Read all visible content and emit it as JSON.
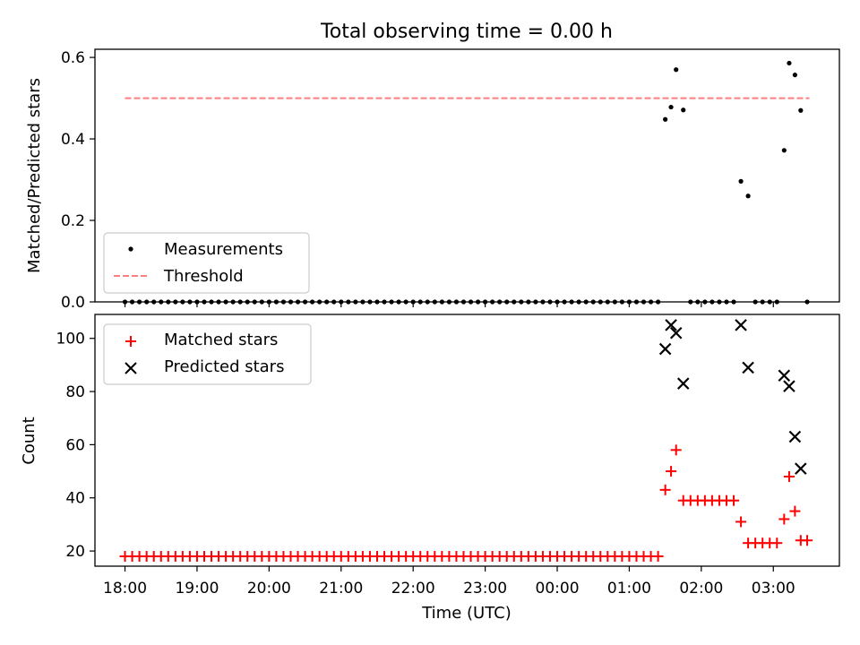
{
  "figure": {
    "title": "Total observing time = 0.00 h"
  },
  "chart_data": [
    {
      "type": "scatter",
      "ylabel": "Matched/Predicted stars",
      "ylim": [
        0,
        0.62
      ],
      "y_ticks": [
        0.0,
        0.2,
        0.4,
        0.6
      ],
      "y_tick_labels": [
        "0.0",
        "0.2",
        "0.4",
        "0.6"
      ],
      "xlim": [
        17.583,
        27.917
      ],
      "legend": {
        "placement": "lower-left",
        "entries": [
          "Measurements",
          "Threshold"
        ]
      },
      "threshold": {
        "name": "Threshold",
        "value": 0.5,
        "x_range": [
          18.0,
          27.5
        ],
        "style": "dashed",
        "color": "#ff7f7f"
      },
      "series": [
        {
          "name": "Measurements",
          "color": "#000000",
          "marker": "dot",
          "points": [
            [
              18.0,
              0
            ],
            [
              18.1,
              0
            ],
            [
              18.2,
              0
            ],
            [
              18.3,
              0
            ],
            [
              18.4,
              0
            ],
            [
              18.5,
              0
            ],
            [
              18.6,
              0
            ],
            [
              18.7,
              0
            ],
            [
              18.8,
              0
            ],
            [
              18.9,
              0
            ],
            [
              19.0,
              0
            ],
            [
              19.1,
              0
            ],
            [
              19.2,
              0
            ],
            [
              19.3,
              0
            ],
            [
              19.4,
              0
            ],
            [
              19.5,
              0
            ],
            [
              19.6,
              0
            ],
            [
              19.7,
              0
            ],
            [
              19.8,
              0
            ],
            [
              19.9,
              0
            ],
            [
              20.0,
              0
            ],
            [
              20.1,
              0
            ],
            [
              20.2,
              0
            ],
            [
              20.3,
              0
            ],
            [
              20.4,
              0
            ],
            [
              20.5,
              0
            ],
            [
              20.6,
              0
            ],
            [
              20.7,
              0
            ],
            [
              20.8,
              0
            ],
            [
              20.9,
              0
            ],
            [
              21.0,
              0
            ],
            [
              21.1,
              0
            ],
            [
              21.2,
              0
            ],
            [
              21.3,
              0
            ],
            [
              21.4,
              0
            ],
            [
              21.5,
              0
            ],
            [
              21.6,
              0
            ],
            [
              21.7,
              0
            ],
            [
              21.8,
              0
            ],
            [
              21.9,
              0
            ],
            [
              22.0,
              0
            ],
            [
              22.1,
              0
            ],
            [
              22.2,
              0
            ],
            [
              22.3,
              0
            ],
            [
              22.4,
              0
            ],
            [
              22.5,
              0
            ],
            [
              22.6,
              0
            ],
            [
              22.7,
              0
            ],
            [
              22.8,
              0
            ],
            [
              22.9,
              0
            ],
            [
              23.0,
              0
            ],
            [
              23.1,
              0
            ],
            [
              23.2,
              0
            ],
            [
              23.3,
              0
            ],
            [
              23.4,
              0
            ],
            [
              23.5,
              0
            ],
            [
              23.6,
              0
            ],
            [
              23.7,
              0
            ],
            [
              23.8,
              0
            ],
            [
              23.9,
              0
            ],
            [
              24.0,
              0
            ],
            [
              24.1,
              0
            ],
            [
              24.2,
              0
            ],
            [
              24.3,
              0
            ],
            [
              24.4,
              0
            ],
            [
              24.5,
              0
            ],
            [
              24.6,
              0
            ],
            [
              24.7,
              0
            ],
            [
              24.8,
              0
            ],
            [
              24.9,
              0
            ],
            [
              25.0,
              0
            ],
            [
              25.1,
              0
            ],
            [
              25.2,
              0
            ],
            [
              25.3,
              0
            ],
            [
              25.4,
              0
            ],
            [
              25.5,
              0.448
            ],
            [
              25.58,
              0.478
            ],
            [
              25.65,
              0.57
            ],
            [
              25.75,
              0.471
            ],
            [
              25.85,
              0
            ],
            [
              25.95,
              0
            ],
            [
              26.05,
              0
            ],
            [
              26.15,
              0
            ],
            [
              26.25,
              0
            ],
            [
              26.35,
              0
            ],
            [
              26.45,
              0
            ],
            [
              26.55,
              0.296
            ],
            [
              26.65,
              0.26
            ],
            [
              26.75,
              0
            ],
            [
              26.85,
              0
            ],
            [
              26.95,
              0
            ],
            [
              27.05,
              0
            ],
            [
              27.15,
              0.372
            ],
            [
              27.22,
              0.586
            ],
            [
              27.3,
              0.557
            ],
            [
              27.38,
              0.47
            ],
            [
              27.47,
              0
            ]
          ]
        }
      ]
    },
    {
      "type": "scatter",
      "xlabel": "Time (UTC)",
      "ylabel": "Count",
      "ylim": [
        14.3,
        109
      ],
      "y_ticks": [
        20,
        40,
        60,
        80,
        100
      ],
      "y_tick_labels": [
        "20",
        "40",
        "60",
        "80",
        "100"
      ],
      "xlim": [
        17.583,
        27.917
      ],
      "x_ticks": [
        18,
        19,
        20,
        21,
        22,
        23,
        24,
        25,
        26,
        27
      ],
      "x_tick_labels": [
        "18:00",
        "19:00",
        "20:00",
        "21:00",
        "22:00",
        "23:00",
        "00:00",
        "01:00",
        "02:00",
        "03:00"
      ],
      "legend": {
        "placement": "upper-left",
        "entries": [
          "Matched stars",
          "Predicted stars"
        ]
      },
      "series": [
        {
          "name": "Matched stars",
          "color": "#ff0000",
          "marker": "plus",
          "points": [
            [
              18.0,
              18
            ],
            [
              18.1,
              18
            ],
            [
              18.2,
              18
            ],
            [
              18.3,
              18
            ],
            [
              18.4,
              18
            ],
            [
              18.5,
              18
            ],
            [
              18.6,
              18
            ],
            [
              18.7,
              18
            ],
            [
              18.8,
              18
            ],
            [
              18.9,
              18
            ],
            [
              19.0,
              18
            ],
            [
              19.1,
              18
            ],
            [
              19.2,
              18
            ],
            [
              19.3,
              18
            ],
            [
              19.4,
              18
            ],
            [
              19.5,
              18
            ],
            [
              19.6,
              18
            ],
            [
              19.7,
              18
            ],
            [
              19.8,
              18
            ],
            [
              19.9,
              18
            ],
            [
              20.0,
              18
            ],
            [
              20.1,
              18
            ],
            [
              20.2,
              18
            ],
            [
              20.3,
              18
            ],
            [
              20.4,
              18
            ],
            [
              20.5,
              18
            ],
            [
              20.6,
              18
            ],
            [
              20.7,
              18
            ],
            [
              20.8,
              18
            ],
            [
              20.9,
              18
            ],
            [
              21.0,
              18
            ],
            [
              21.1,
              18
            ],
            [
              21.2,
              18
            ],
            [
              21.3,
              18
            ],
            [
              21.4,
              18
            ],
            [
              21.5,
              18
            ],
            [
              21.6,
              18
            ],
            [
              21.7,
              18
            ],
            [
              21.8,
              18
            ],
            [
              21.9,
              18
            ],
            [
              22.0,
              18
            ],
            [
              22.1,
              18
            ],
            [
              22.2,
              18
            ],
            [
              22.3,
              18
            ],
            [
              22.4,
              18
            ],
            [
              22.5,
              18
            ],
            [
              22.6,
              18
            ],
            [
              22.7,
              18
            ],
            [
              22.8,
              18
            ],
            [
              22.9,
              18
            ],
            [
              23.0,
              18
            ],
            [
              23.1,
              18
            ],
            [
              23.2,
              18
            ],
            [
              23.3,
              18
            ],
            [
              23.4,
              18
            ],
            [
              23.5,
              18
            ],
            [
              23.6,
              18
            ],
            [
              23.7,
              18
            ],
            [
              23.8,
              18
            ],
            [
              23.9,
              18
            ],
            [
              24.0,
              18
            ],
            [
              24.1,
              18
            ],
            [
              24.2,
              18
            ],
            [
              24.3,
              18
            ],
            [
              24.4,
              18
            ],
            [
              24.5,
              18
            ],
            [
              24.6,
              18
            ],
            [
              24.7,
              18
            ],
            [
              24.8,
              18
            ],
            [
              24.9,
              18
            ],
            [
              25.0,
              18
            ],
            [
              25.1,
              18
            ],
            [
              25.2,
              18
            ],
            [
              25.3,
              18
            ],
            [
              25.4,
              18
            ],
            [
              25.5,
              43
            ],
            [
              25.58,
              50
            ],
            [
              25.65,
              58
            ],
            [
              25.75,
              39
            ],
            [
              25.85,
              39
            ],
            [
              25.95,
              39
            ],
            [
              26.05,
              39
            ],
            [
              26.15,
              39
            ],
            [
              26.25,
              39
            ],
            [
              26.35,
              39
            ],
            [
              26.45,
              39
            ],
            [
              26.55,
              31
            ],
            [
              26.65,
              23
            ],
            [
              26.75,
              23
            ],
            [
              26.85,
              23
            ],
            [
              26.95,
              23
            ],
            [
              27.05,
              23
            ],
            [
              27.15,
              32
            ],
            [
              27.22,
              48
            ],
            [
              27.3,
              35
            ],
            [
              27.38,
              24
            ],
            [
              27.47,
              24
            ]
          ]
        },
        {
          "name": "Predicted stars",
          "color": "#000000",
          "marker": "x",
          "points": [
            [
              25.5,
              96
            ],
            [
              25.58,
              105
            ],
            [
              25.65,
              102
            ],
            [
              25.75,
              83
            ],
            [
              26.55,
              105
            ],
            [
              26.65,
              89
            ],
            [
              27.15,
              86
            ],
            [
              27.22,
              82
            ],
            [
              27.3,
              63
            ],
            [
              27.38,
              51
            ]
          ]
        }
      ]
    }
  ]
}
